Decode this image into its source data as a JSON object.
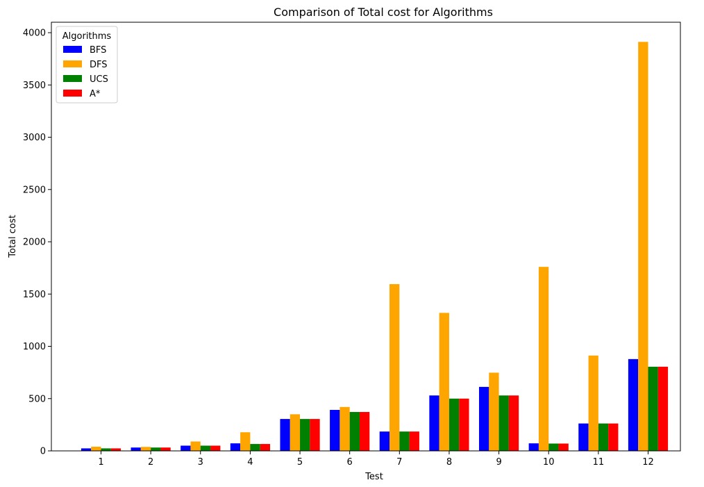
{
  "chart_data": {
    "type": "bar",
    "title": "Comparison of Total cost for Algorithms",
    "xlabel": "Test",
    "ylabel": "Total cost",
    "ylim": [
      0,
      4100
    ],
    "yticks": [
      0,
      500,
      1000,
      1500,
      2000,
      2500,
      3000,
      3500,
      4000
    ],
    "categories": [
      "1",
      "2",
      "3",
      "4",
      "5",
      "6",
      "7",
      "8",
      "9",
      "10",
      "11",
      "12"
    ],
    "grid": false,
    "legend": {
      "title": "Algorithms",
      "position": "top-left"
    },
    "series": [
      {
        "name": "BFS",
        "color": "#0000ff",
        "values": [
          24,
          32,
          50,
          72,
          305,
          392,
          185,
          530,
          612,
          72,
          262,
          878
        ]
      },
      {
        "name": "DFS",
        "color": "#ffa500",
        "values": [
          40,
          38,
          90,
          178,
          350,
          420,
          1595,
          1320,
          748,
          1760,
          912,
          3912
        ]
      },
      {
        "name": "UCS",
        "color": "#008000",
        "values": [
          24,
          32,
          50,
          66,
          305,
          372,
          185,
          500,
          530,
          70,
          262,
          805
        ]
      },
      {
        "name": "A*",
        "color": "#ff0000",
        "values": [
          24,
          32,
          50,
          66,
          305,
          372,
          185,
          500,
          530,
          70,
          262,
          805
        ]
      }
    ]
  }
}
